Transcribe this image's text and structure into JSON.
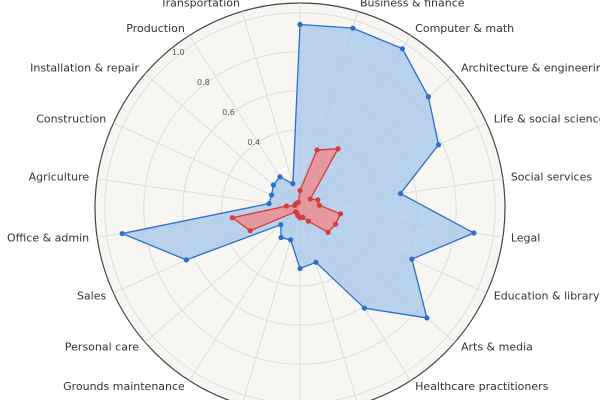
{
  "chart_data": {
    "type": "radar",
    "categories": [
      null,
      "Business & finance",
      "Computer & math",
      "Architecture & engineering",
      "Life & social sciences",
      "Social services",
      "Legal",
      "Education & library",
      "Arts & media",
      "Healthcare practitioners",
      null,
      null,
      null,
      "Grounds maintenance",
      "Personal care",
      "Sales",
      "Office & admin",
      "Agriculture",
      "Construction",
      "Installation & repair",
      "Production",
      "Transportation"
    ],
    "series": [
      {
        "color": "#2a6fc9",
        "fill": "#a9c8e8",
        "values": [
          0.94,
          0.96,
          0.97,
          0.87,
          0.78,
          0.52,
          0.9,
          0.63,
          0.86,
          0.61,
          0.29,
          0.31,
          0.17,
          0.18,
          0.13,
          0.64,
          0.92,
          0.16,
          0.16,
          0.18,
          0.19,
          0.13
        ]
      },
      {
        "color": "#d43c3c",
        "fill": "#f08a8a",
        "values": [
          0.09,
          0.31,
          0.36,
          0.07,
          0.1,
          0.1,
          0.21,
          0.2,
          0.19,
          0.08,
          0.05,
          0.05,
          0.04,
          0.03,
          0.03,
          0.28,
          0.35,
          0.07,
          0.03,
          0.03,
          0.03,
          0.03
        ]
      }
    ],
    "ylim": [
      0,
      1.05
    ],
    "yticks": [
      0.4,
      0.6,
      0.8,
      {
        "value": 1,
        "label": "1.0"
      }
    ],
    "grid": true
  }
}
